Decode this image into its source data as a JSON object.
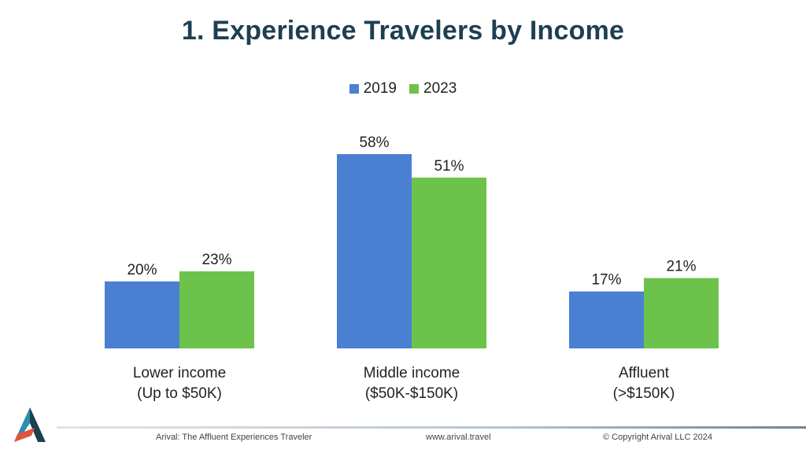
{
  "title": "1. Experience Travelers by Income",
  "legend": [
    {
      "label": "2019",
      "color": "#4a7fd1"
    },
    {
      "label": "2023",
      "color": "#6cc24a"
    }
  ],
  "chart_data": {
    "type": "bar",
    "title": "1. Experience Travelers by Income",
    "categories": [
      [
        "Lower income",
        "(Up to $50K)"
      ],
      [
        "Middle income",
        "($50K-$150K)"
      ],
      [
        "Affluent",
        "(>$150K)"
      ]
    ],
    "series": [
      {
        "name": "2019",
        "values": [
          20,
          58,
          17
        ],
        "labels": [
          "20%",
          "58%",
          "17%"
        ],
        "color": "#4a7fd1"
      },
      {
        "name": "2023",
        "values": [
          23,
          51,
          21
        ],
        "labels": [
          "23%",
          "51%",
          "21%"
        ],
        "color": "#6cc24a"
      }
    ],
    "ylim": [
      0,
      58
    ],
    "grid": false,
    "legend_position": "top-center"
  },
  "footer": {
    "left": "Arival: The  Affluent Experiences Traveler",
    "center": "www.arival.travel",
    "right": "© Copyright Arival LLC 2024"
  },
  "logo": {
    "icon": "arival-logo-icon",
    "colors": [
      "#1e3f52",
      "#2a8fa8",
      "#e0533d"
    ]
  }
}
